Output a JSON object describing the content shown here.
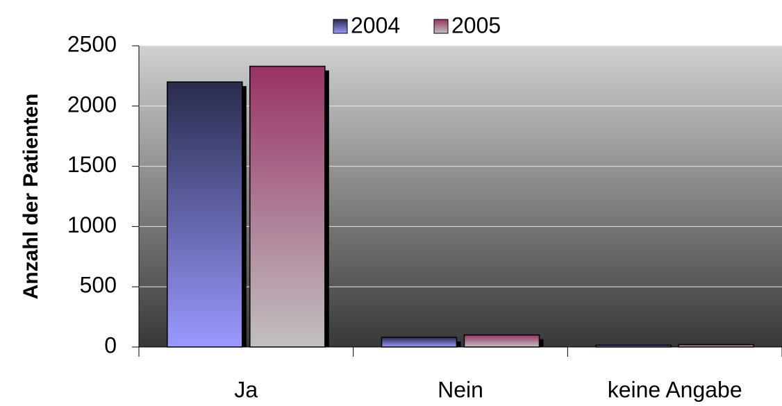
{
  "chart_data": {
    "type": "bar",
    "categories": [
      "Ja",
      "Nein",
      "keine Angabe"
    ],
    "series": [
      {
        "name": "2004",
        "color": [
          "#2a2b4c",
          "#9999ff"
        ],
        "values": [
          2200,
          80,
          15
        ]
      },
      {
        "name": "2005",
        "color": [
          "#993366",
          "#c0c0c0"
        ],
        "values": [
          2330,
          100,
          20
        ]
      }
    ],
    "ylabel": "Anzahl der Patienten",
    "ylim": [
      0,
      2500
    ],
    "yticks": [
      0,
      500,
      1000,
      1500,
      2000,
      2500
    ],
    "grid": true,
    "legend": "top"
  }
}
